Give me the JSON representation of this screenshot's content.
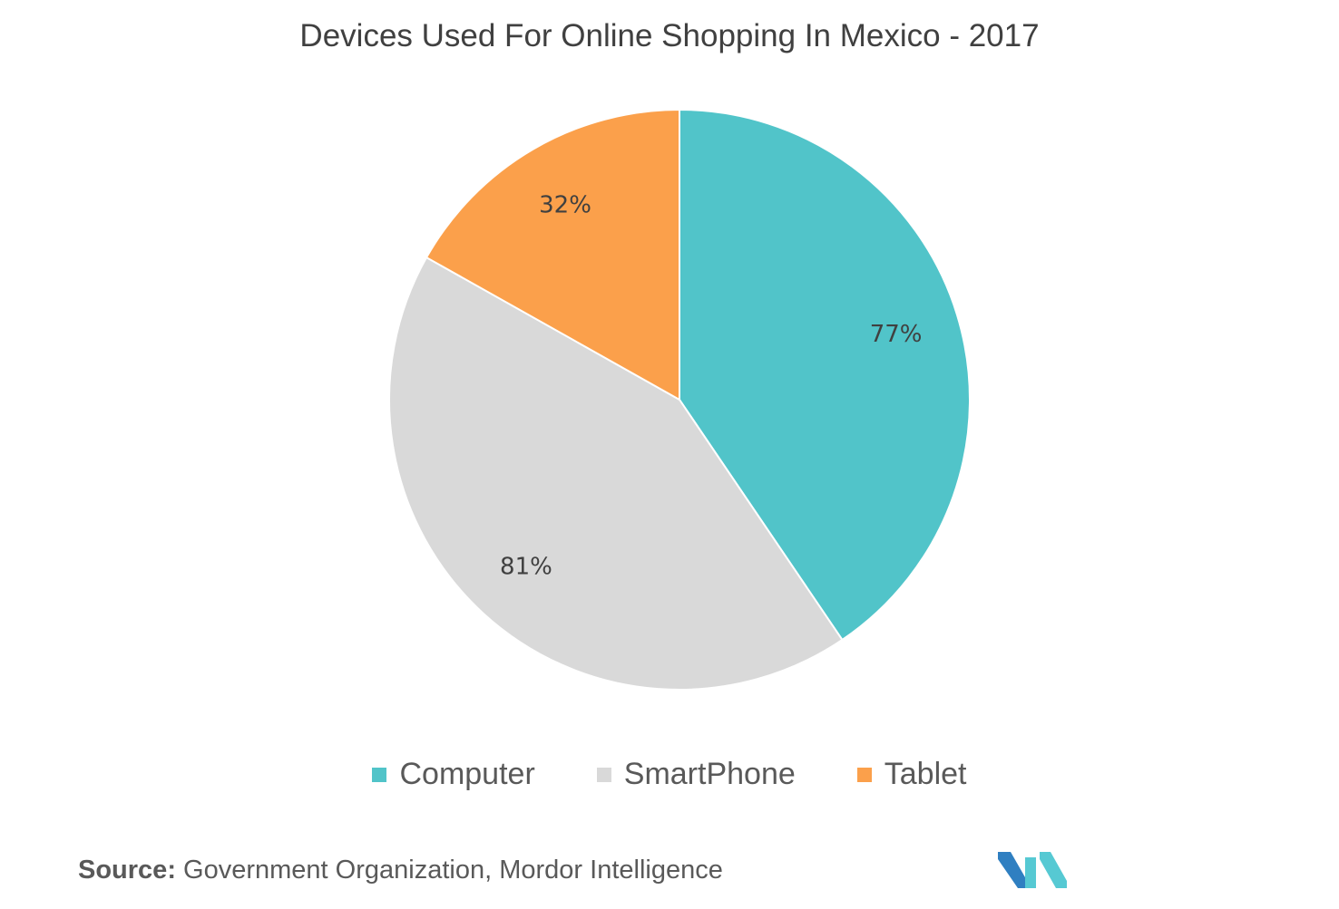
{
  "chart_data": {
    "type": "pie",
    "title": "Devices Used For Online Shopping In Mexico - 2017",
    "categories": [
      "Computer",
      "SmartPhone",
      "Tablet"
    ],
    "values": [
      77,
      81,
      32
    ],
    "data_labels": [
      "77%",
      "81%",
      "32%"
    ],
    "colors": [
      "#51c4c9",
      "#d9d9d9",
      "#fba04b"
    ],
    "legend_position": "bottom"
  },
  "source": {
    "label": "Source:",
    "text": "Government Organization, Mordor Intelligence"
  },
  "logo": {
    "icon": "mordor-intelligence-logo",
    "colors": [
      "#2f7fc1",
      "#56c9d3"
    ]
  }
}
